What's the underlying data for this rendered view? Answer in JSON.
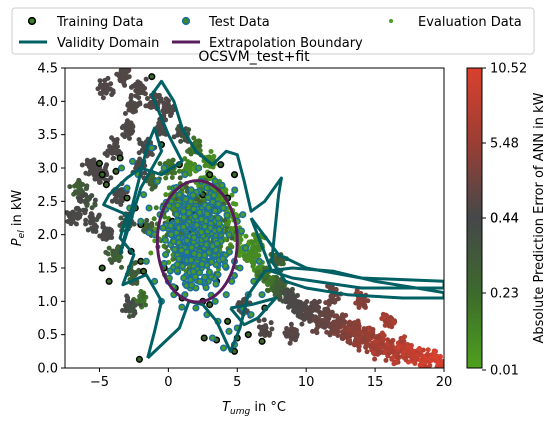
{
  "chart_data": {
    "type": "scatter",
    "title": "OCSVM_test+fit",
    "xlabel_main": "T",
    "xlabel_sub": "umg",
    "xlabel_rest": " in °C",
    "ylabel_main": "P",
    "ylabel_sub": "el",
    "ylabel_rest": " in kW",
    "xlim": [
      -7.5,
      20
    ],
    "ylim": [
      0,
      4.5
    ],
    "xticks": [
      -5,
      0,
      5,
      10,
      15,
      20
    ],
    "yticks": [
      0.0,
      0.5,
      1.0,
      1.5,
      2.0,
      2.5,
      3.0,
      3.5,
      4.0,
      4.5
    ],
    "legend": {
      "placement": "top",
      "entries": [
        {
          "label": "Training Data",
          "marker": "circle",
          "face": "#3a8a24",
          "edge": "#000000"
        },
        {
          "label": "Test Data",
          "marker": "circle",
          "face": "#3a8a24",
          "edge": "#1a6fa0"
        },
        {
          "label": "Evaluation Data",
          "marker": "dot",
          "face": "#4a9e24"
        },
        {
          "label": "Validity Domain",
          "marker": "line",
          "color": "#006064"
        },
        {
          "label": "Extrapolation Boundary",
          "marker": "line",
          "color": "#5a1c5c"
        }
      ]
    },
    "colorbar": {
      "label": "Absolute Prediction Error of ANN in kW",
      "ticks": [
        "0.01",
        "0.23",
        "0.44",
        "0.44",
        "5.48",
        "10.52"
      ],
      "colors": [
        "#4ea01e",
        "#3c6a2c",
        "#46474a",
        "#4a4848",
        "#9a3e34",
        "#d9402e"
      ]
    },
    "series": [
      {
        "name": "Evaluation Data",
        "kind": "density",
        "points": [
          [
            -6.5,
            2.7
          ],
          [
            -6,
            2.5
          ],
          [
            -5.5,
            2.2
          ],
          [
            -4.8,
            2.9
          ],
          [
            -4.5,
            2.0
          ],
          [
            -4,
            3.3
          ],
          [
            -3.8,
            1.7
          ],
          [
            -3.5,
            2.6
          ],
          [
            -3,
            3.6
          ],
          [
            -3,
            2.2
          ],
          [
            -2.5,
            3.9
          ],
          [
            -2.5,
            1.4
          ],
          [
            -2,
            3.0
          ],
          [
            -2,
            1.0
          ],
          [
            -1.5,
            3.3
          ],
          [
            -1.5,
            2.1
          ],
          [
            -1,
            4.0
          ],
          [
            -1,
            2.8
          ],
          [
            -0.5,
            3.6
          ],
          [
            0,
            3.0
          ],
          [
            0,
            3.9
          ],
          [
            0.5,
            2.6
          ],
          [
            1,
            3.5
          ],
          [
            1.5,
            3.0
          ],
          [
            2,
            3.3
          ],
          [
            2.5,
            2.8
          ],
          [
            3,
            3.1
          ],
          [
            3.5,
            2.7
          ],
          [
            4,
            2.6
          ],
          [
            4.5,
            2.3
          ],
          [
            5,
            2.0
          ],
          [
            5.5,
            1.8
          ],
          [
            6,
            1.7
          ],
          [
            6.5,
            1.5
          ],
          [
            7,
            1.4
          ],
          [
            7.5,
            1.3
          ],
          [
            8,
            1.2
          ],
          [
            8.5,
            1.1
          ],
          [
            9,
            1.0
          ],
          [
            9.5,
            0.9
          ],
          [
            10,
            0.8
          ],
          [
            10.5,
            0.9
          ],
          [
            11,
            0.7
          ],
          [
            11.5,
            0.8
          ],
          [
            12,
            0.6
          ],
          [
            12.5,
            0.7
          ],
          [
            13,
            0.5
          ],
          [
            13.5,
            0.6
          ],
          [
            14,
            0.4
          ],
          [
            14.5,
            0.5
          ],
          [
            15,
            0.3
          ],
          [
            15.5,
            0.4
          ],
          [
            16,
            0.3
          ],
          [
            16.5,
            0.2
          ],
          [
            17,
            0.3
          ],
          [
            17.5,
            0.2
          ],
          [
            18,
            0.2
          ],
          [
            18.5,
            0.1
          ],
          [
            19,
            0.15
          ],
          [
            19.5,
            0.1
          ],
          [
            -3.2,
            4.4
          ],
          [
            -4.5,
            4.2
          ],
          [
            -2.2,
            4.2
          ],
          [
            6.5,
            1.9
          ],
          [
            8,
            1.6
          ],
          [
            7,
            0.6
          ],
          [
            9,
            0.5
          ],
          [
            5.5,
            0.9
          ],
          [
            12,
            1.1
          ],
          [
            14,
            1.0
          ],
          [
            16,
            0.7
          ],
          [
            -5.5,
            3.0
          ],
          [
            -6.8,
            2.3
          ],
          [
            -2.8,
            0.9
          ]
        ],
        "error": [
          0.3,
          0.4,
          0.5,
          0.6,
          0.5,
          0.7,
          0.3,
          0.5,
          0.6,
          0.4,
          0.8,
          0.3,
          0.5,
          0.2,
          0.5,
          0.3,
          0.9,
          0.3,
          0.6,
          0.2,
          0.8,
          0.1,
          0.4,
          0.1,
          0.2,
          0.05,
          0.1,
          0.05,
          0.05,
          0.05,
          0.05,
          0.05,
          0.1,
          0.1,
          0.2,
          0.2,
          0.3,
          0.4,
          0.5,
          0.6,
          1.0,
          1.2,
          2.0,
          2.0,
          3.0,
          3.0,
          4.0,
          4.5,
          5.0,
          5.5,
          6.0,
          6.5,
          7.0,
          7.5,
          8.0,
          8.5,
          9.0,
          9.5,
          10.0,
          10.5,
          0.9,
          0.8,
          0.8,
          0.1,
          0.3,
          0.8,
          1.2,
          0.5,
          2.5,
          4.0,
          6.0,
          0.6,
          0.5,
          0.4
        ]
      },
      {
        "name": "Training Data",
        "points": [
          [
            -1.2,
            4.37
          ],
          [
            -4.8,
            2.9
          ],
          [
            -4.5,
            2.75
          ],
          [
            -3.8,
            2.95
          ],
          [
            -3.5,
            3.15
          ],
          [
            -5,
            3.07
          ],
          [
            -4.8,
            1.5
          ],
          [
            -4.3,
            1.3
          ],
          [
            -3,
            2.55
          ],
          [
            -2.4,
            2.4
          ],
          [
            -2,
            2.15
          ],
          [
            -2.7,
            1.75
          ],
          [
            -1.8,
            1.45
          ],
          [
            -2,
            1.6
          ],
          [
            -0.5,
            3.35
          ],
          [
            0.8,
            3.05
          ],
          [
            3,
            2.9
          ],
          [
            4.8,
            2.9
          ],
          [
            4.3,
            2.55
          ],
          [
            3.8,
            3.05
          ],
          [
            2.5,
            2.6
          ],
          [
            0.5,
            1.2
          ],
          [
            1,
            1.05
          ],
          [
            2.5,
            1.0
          ],
          [
            3,
            0.95
          ],
          [
            5,
            0.45
          ],
          [
            5.8,
            0.5
          ],
          [
            6.8,
            0.4
          ],
          [
            7,
            0.9
          ],
          [
            4.3,
            0.7
          ],
          [
            4.8,
            0.25
          ],
          [
            2.6,
            0.45
          ],
          [
            -2.1,
            0.13
          ],
          [
            3.5,
            0.42
          ],
          [
            1.5,
            2.0
          ],
          [
            1.2,
            1.6
          ],
          [
            2,
            2.3
          ],
          [
            3.5,
            1.3
          ],
          [
            0.3,
            2.2
          ],
          [
            -0.3,
            1.5
          ]
        ]
      },
      {
        "name": "Test Data",
        "points": [
          [
            0.2,
            2.0
          ],
          [
            0.6,
            2.3
          ],
          [
            1,
            1.8
          ],
          [
            1.4,
            2.1
          ],
          [
            1.8,
            1.7
          ],
          [
            2.2,
            2.4
          ],
          [
            2.6,
            2.0
          ],
          [
            3,
            1.6
          ],
          [
            3.4,
            2.2
          ],
          [
            3.8,
            1.9
          ],
          [
            0.8,
            2.6
          ],
          [
            1.2,
            2.9
          ],
          [
            1.6,
            1.4
          ],
          [
            2,
            1.2
          ],
          [
            2.4,
            1.5
          ],
          [
            2.8,
            2.7
          ],
          [
            3.2,
            2.5
          ],
          [
            3.6,
            1.4
          ],
          [
            4,
            1.7
          ],
          [
            4.4,
            2.0
          ],
          [
            -0.2,
            1.7
          ],
          [
            -0.6,
            2.3
          ],
          [
            -1,
            2.0
          ],
          [
            -1.4,
            2.4
          ],
          [
            -1.8,
            2.6
          ],
          [
            -2.2,
            2.9
          ],
          [
            -2.6,
            3.1
          ],
          [
            -3,
            2.7
          ],
          [
            -3.4,
            3.0
          ],
          [
            0,
            1.3
          ],
          [
            0.4,
            1.1
          ],
          [
            1.2,
            1.1
          ],
          [
            2,
            0.9
          ],
          [
            2.8,
            0.8
          ],
          [
            3.6,
            0.7
          ],
          [
            4.4,
            0.55
          ],
          [
            5,
            0.6
          ],
          [
            5.4,
            0.9
          ],
          [
            5.8,
            1.1
          ],
          [
            6.2,
            1.3
          ],
          [
            4.6,
            1.3
          ],
          [
            4.2,
            1.1
          ],
          [
            3.4,
            1.0
          ],
          [
            1.6,
            2.6
          ],
          [
            2.4,
            2.8
          ],
          [
            0.4,
            2.7
          ],
          [
            -0.8,
            2.8
          ],
          [
            -1.2,
            3.3
          ],
          [
            -0.4,
            2.4
          ],
          [
            2.6,
            1.8
          ],
          [
            3,
            2.1
          ],
          [
            1.8,
            2.0
          ],
          [
            1.4,
            1.6
          ],
          [
            0.6,
            1.5
          ],
          [
            -1.6,
            1.6
          ],
          [
            -2,
            2.2
          ],
          [
            -2.8,
            2.4
          ],
          [
            4.8,
            1.6
          ],
          [
            5.2,
            1.5
          ],
          [
            5.6,
            1.8
          ],
          [
            6.6,
            1.6
          ],
          [
            6,
            0.8
          ],
          [
            4,
            0.3
          ],
          [
            4.8,
            0.35
          ],
          [
            -0.3,
            3.0
          ],
          [
            2.2,
            3.0
          ],
          [
            3.4,
            2.8
          ],
          [
            4,
            2.4
          ],
          [
            5,
            2.2
          ],
          [
            5.4,
            2.3
          ],
          [
            2.9,
            1.3
          ],
          [
            2.1,
            1.5
          ],
          [
            1.0,
            2.4
          ],
          [
            0.2,
            2.5
          ],
          [
            -1,
            1.3
          ],
          [
            -0.5,
            1.0
          ],
          [
            6.8,
            1.1
          ],
          [
            3.2,
            0.45
          ],
          [
            1.6,
            1.2
          ],
          [
            2.0,
            2.1
          ]
        ]
      }
    ],
    "validity_domain": [
      [
        [
          -1.5,
          0.15
        ],
        [
          0.8,
          0.6
        ],
        [
          1.5,
          1.0
        ],
        [
          2.5,
          0.95
        ],
        [
          3.5,
          0.7
        ],
        [
          4.5,
          0.25
        ],
        [
          5.2,
          0.6
        ],
        [
          5.8,
          1.1
        ],
        [
          7,
          1.45
        ],
        [
          9,
          1.5
        ],
        [
          12,
          1.45
        ],
        [
          15,
          1.3
        ],
        [
          18,
          1.2
        ],
        [
          20,
          1.13
        ],
        [
          20,
          1.05
        ],
        [
          17,
          1.05
        ],
        [
          13,
          1.1
        ],
        [
          10,
          1.2
        ],
        [
          8.5,
          1.3
        ],
        [
          7.5,
          1.6
        ],
        [
          8,
          2.6
        ],
        [
          8.2,
          2.85
        ],
        [
          7,
          2.5
        ],
        [
          6,
          2.35
        ],
        [
          5.5,
          2.8
        ],
        [
          5,
          3.2
        ],
        [
          4.2,
          3.25
        ],
        [
          3.2,
          3.05
        ],
        [
          2,
          3.25
        ],
        [
          1,
          3.6
        ],
        [
          0.4,
          4.0
        ],
        [
          -0.5,
          4.3
        ],
        [
          -1.2,
          4.1
        ],
        [
          0,
          3.5
        ],
        [
          1,
          3.1
        ],
        [
          -0.5,
          2.9
        ],
        [
          -2,
          3.0
        ],
        [
          -3,
          2.85
        ],
        [
          -4.3,
          2.6
        ],
        [
          -4.7,
          2.45
        ],
        [
          -3,
          2.3
        ],
        [
          -3.5,
          1.95
        ],
        [
          -2.5,
          1.7
        ],
        [
          -3.3,
          1.25
        ],
        [
          -1.6,
          1.4
        ],
        [
          -0.9,
          1.15
        ],
        [
          -0.5,
          1.0
        ],
        [
          -1,
          0.55
        ],
        [
          -1.5,
          0.15
        ]
      ],
      [
        [
          -3.5,
          1.7
        ],
        [
          -1.5,
          3.35
        ],
        [
          -1,
          3.6
        ],
        [
          -0.5,
          3.25
        ],
        [
          -2,
          2.7
        ],
        [
          -3.5,
          1.7
        ]
      ],
      [
        [
          6,
          2.25
        ],
        [
          8,
          1.7
        ],
        [
          10,
          1.5
        ],
        [
          14,
          1.35
        ],
        [
          20,
          1.3
        ],
        [
          20,
          1.2
        ],
        [
          14,
          1.2
        ],
        [
          9,
          1.35
        ],
        [
          7.5,
          1.45
        ],
        [
          6,
          2.25
        ]
      ],
      [
        [
          4.5,
          0.9
        ],
        [
          6,
          0.95
        ],
        [
          7.8,
          1.05
        ],
        [
          6.5,
          0.75
        ],
        [
          5.5,
          0.65
        ],
        [
          4.5,
          0.9
        ]
      ]
    ],
    "extrapolation_boundary": {
      "center": [
        2.1,
        1.9
      ],
      "rx": 5.8,
      "ry": 0.91
    }
  }
}
